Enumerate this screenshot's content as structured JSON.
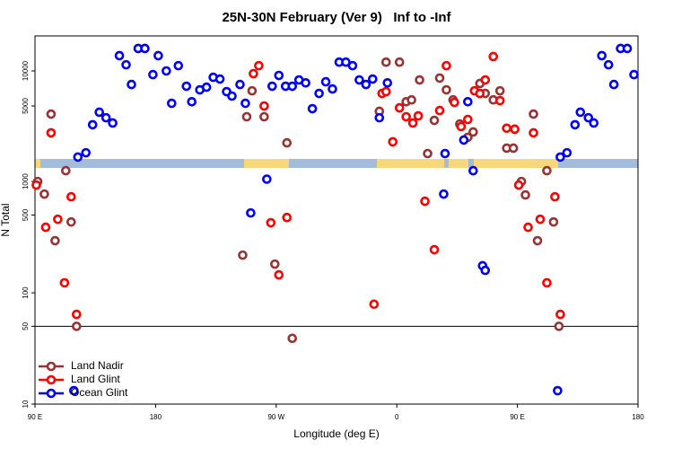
{
  "chart_data": {
    "type": "scatter",
    "title": "25N-30N February (Ver 9)   Inf to -Inf",
    "xlabel": "Longitude (deg E)",
    "ylabel": "N Total",
    "xlim": [
      90,
      540
    ],
    "xticks": [
      {
        "value": 90,
        "label": "90 E"
      },
      180,
      {
        "value": 270,
        "label": "90 W"
      },
      {
        "value": 360,
        "label": "0"
      },
      {
        "value": 450,
        "label": "90 E"
      },
      {
        "value": 540,
        "label": "180"
      }
    ],
    "ylim": [
      10,
      1300
    ],
    "yscale": "log",
    "yticks": [
      10,
      50,
      100,
      500,
      1000
    ],
    "y2lim": [
      1800,
      20000
    ],
    "y2scale": "log",
    "y2ticks": [
      5000,
      10000
    ],
    "hline": 50,
    "legend": "lower left",
    "series": [
      {
        "name": "Land Nadir",
        "color": "#993333",
        "x": [
          102,
          113,
          92,
          97,
          105,
          117,
          121,
          245,
          278,
          282,
          269,
          248,
          252,
          261,
          347,
          352,
          362,
          367,
          371,
          377,
          383,
          388,
          392,
          397,
          402,
          407,
          413,
          417,
          422,
          426,
          432,
          437,
          442,
          447,
          453,
          456,
          462,
          465,
          472,
          477,
          481
        ],
        "values": [
          4260,
          1250,
          1000,
          771,
          294,
          433,
          50,
          218,
          2410,
          39,
          181,
          4040,
          6750,
          4040,
          4500,
          11900,
          11900,
          5440,
          5640,
          8370,
          1950,
          3760,
          8690,
          6880,
          5640,
          3500,
          2690,
          2990,
          7800,
          6410,
          5640,
          6750,
          2170,
          2170,
          1000,
          757,
          4260,
          294,
          1250,
          433,
          50
        ]
      },
      {
        "name": "Land Glint",
        "color": "#ff0000",
        "x": [
          102,
          91,
          98,
          107,
          112,
          117,
          121,
          253,
          257,
          261,
          266,
          272,
          278,
          343,
          349,
          352,
          357,
          362,
          367,
          372,
          376,
          381,
          388,
          392,
          397,
          403,
          408,
          413,
          418,
          422,
          426,
          432,
          437,
          442,
          448,
          451,
          458,
          462,
          467,
          472,
          478,
          482
        ],
        "values": [
          2940,
          929,
          388,
          458,
          123,
          729,
          64,
          9480,
          11100,
          5000,
          426,
          145,
          475,
          79,
          6410,
          6640,
          2460,
          4820,
          4040,
          3570,
          4110,
          665,
          244,
          4570,
          11100,
          5370,
          3330,
          3830,
          6750,
          6410,
          8370,
          13300,
          5560,
          3220,
          3160,
          929,
          388,
          2940,
          458,
          123,
          729,
          64
        ]
      },
      {
        "name": "Ocean Glint",
        "color": "#0000ff",
        "x": [
          119,
          122,
          128,
          133,
          138,
          143,
          148,
          153,
          158,
          162,
          167,
          172,
          178,
          182,
          188,
          192,
          197,
          203,
          207,
          213,
          218,
          223,
          228,
          233,
          237,
          243,
          247,
          251,
          263,
          267,
          272,
          277,
          282,
          287,
          292,
          297,
          302,
          307,
          312,
          317,
          322,
          327,
          332,
          337,
          342,
          347,
          353,
          396,
          395,
          410,
          413,
          417,
          424,
          426,
          480,
          482,
          487,
          493,
          497,
          503,
          507,
          513,
          518,
          522,
          527,
          532,
          537
        ],
        "values": [
          13.2,
          1820,
          1980,
          3450,
          4420,
          3960,
          3570,
          13540,
          11300,
          7650,
          15600,
          15600,
          9300,
          13540,
          10000,
          5270,
          11100,
          7390,
          5440,
          6880,
          7250,
          8820,
          8520,
          6640,
          6080,
          7650,
          5270,
          522,
          1050,
          7390,
          9150,
          7390,
          7390,
          8370,
          7900,
          4740,
          6410,
          8070,
          7000,
          11900,
          11900,
          11100,
          8370,
          7650,
          8520,
          3960,
          7900,
          1950,
          771,
          2550,
          5440,
          1250,
          175,
          159,
          13.2,
          1820,
          1980,
          3450,
          4420,
          3960,
          3570,
          13540,
          11300,
          7650,
          15600,
          15600,
          9300
        ]
      }
    ]
  }
}
